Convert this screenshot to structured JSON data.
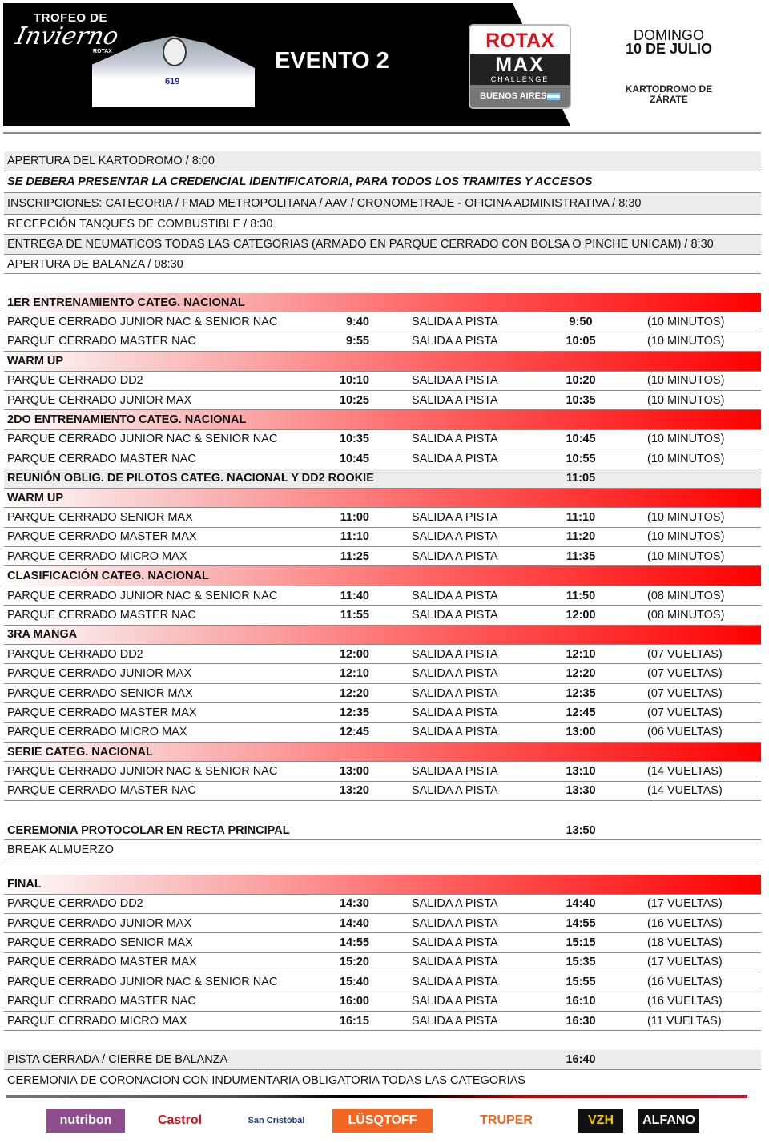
{
  "header": {
    "trofeo_line1": "TROFEO DE",
    "trofeo_line2": "Invierno",
    "trofeo_line3": "ROTAX",
    "kart_number": "619",
    "event": "EVENTO 2",
    "rotax_logo": {
      "brand": "ROTAX",
      "max": "MAX",
      "challenge": "CHALLENGE",
      "region": "BUENOS AIRES"
    },
    "date_line1": "DOMINGO",
    "date_line2": "10 DE JULIO",
    "venue": "KARTODROMO DE ZÁRATE"
  },
  "colors": {
    "accent_red": "#ff0000",
    "row_gray": "#ececec"
  },
  "rows": [
    {
      "type": "gray",
      "h": 25,
      "name": "APERTURA DEL KARTODROMO / 8:00"
    },
    {
      "type": "bi",
      "h": 27,
      "name": "SE DEBERA PRESENTAR LA CREDENCIAL IDENTIFICATORIA, PARA TODOS LOS TRAMITES Y ACCESOS"
    },
    {
      "type": "gray",
      "h": 27,
      "name": "INSCRIPCIONES: CATEGORIA / FMAD METROPOLITANA / AAV / CRONOMETRAJE - OFICINA ADMINISTRATIVA  / 8:30"
    },
    {
      "type": "plain",
      "h": 25,
      "name": "RECEPCIÓN TANQUES DE COMBUSTIBLE  / 8:30"
    },
    {
      "type": "gray",
      "h": 25,
      "name": "ENTREGA DE NEUMATICOS TODAS LAS CATEGORIAS (ARMADO EN PARQUE CERRADO CON BOLSA O PINCHE UNICAM) / 8:30"
    },
    {
      "type": "plain",
      "h": 24,
      "name": "APERTURA DE BALANZA / 08:30"
    },
    {
      "type": "gap",
      "h": 24
    },
    {
      "type": "head",
      "h": 24.4,
      "name": "1ER ENTRENAMIENTO CATEG. NACIONAL"
    },
    {
      "type": "plain",
      "h": 24.4,
      "name": "PARQUE CERRADO JUNIOR NAC & SENIOR NAC",
      "t1": "9:40",
      "sal": "SALIDA A PISTA",
      "t2": "9:50",
      "note": "(10 MINUTOS)"
    },
    {
      "type": "plain",
      "h": 24.4,
      "name": "PARQUE CERRADO MASTER NAC",
      "t1": "9:55",
      "sal": "SALIDA A PISTA",
      "t2": "10:05",
      "note": "(10 MINUTOS)"
    },
    {
      "type": "head",
      "h": 24.4,
      "name": "WARM UP"
    },
    {
      "type": "plain",
      "h": 24.4,
      "name": "PARQUE CERRADO DD2",
      "t1": "10:10",
      "sal": "SALIDA A PISTA",
      "t2": "10:20",
      "note": "(10 MINUTOS)"
    },
    {
      "type": "plain",
      "h": 24.4,
      "name": "PARQUE CERRADO JUNIOR MAX",
      "t1": "10:25",
      "sal": "SALIDA A PISTA",
      "t2": "10:35",
      "note": "(10 MINUTOS)"
    },
    {
      "type": "head",
      "h": 24.4,
      "name": "2DO ENTRENAMIENTO CATEG. NACIONAL"
    },
    {
      "type": "plain",
      "h": 24.4,
      "name": "PARQUE CERRADO JUNIOR NAC & SENIOR NAC",
      "t1": "10:35",
      "sal": "SALIDA A PISTA",
      "t2": "10:45",
      "note": "(10 MINUTOS)"
    },
    {
      "type": "plain",
      "h": 24.4,
      "name": "PARQUE CERRADO MASTER NAC",
      "t1": "10:45",
      "sal": "SALIDA A PISTA",
      "t2": "10:55",
      "note": "(10 MINUTOS)"
    },
    {
      "type": "grayb",
      "h": 24.4,
      "name": "REUNIÓN OBLIG. DE PILOTOS CATEG. NACIONAL  Y DD2 ROOKIE",
      "t2": "11:05"
    },
    {
      "type": "head",
      "h": 24.4,
      "name": "WARM UP"
    },
    {
      "type": "plain",
      "h": 24.4,
      "name": "PARQUE CERRADO SENIOR MAX",
      "t1": "11:00",
      "sal": "SALIDA A PISTA",
      "t2": "11:10",
      "note": "(10 MINUTOS)"
    },
    {
      "type": "plain",
      "h": 24.4,
      "name": "PARQUE CERRADO MASTER MAX",
      "t1": "11:10",
      "sal": "SALIDA A PISTA",
      "t2": "11:20",
      "note": "(10 MINUTOS)"
    },
    {
      "type": "plain",
      "h": 24.4,
      "name": "PARQUE CERRADO MICRO MAX",
      "t1": "11:25",
      "sal": "SALIDA A PISTA",
      "t2": "11:35",
      "note": "(10 MINUTOS)"
    },
    {
      "type": "head",
      "h": 24.4,
      "name": "CLASIFICACIÓN CATEG. NACIONAL"
    },
    {
      "type": "plain",
      "h": 24.4,
      "name": "PARQUE CERRADO JUNIOR NAC & SENIOR NAC",
      "t1": "11:40",
      "sal": "SALIDA A PISTA",
      "t2": "11:50",
      "note": "(08 MINUTOS)"
    },
    {
      "type": "plain",
      "h": 24.4,
      "name": "PARQUE CERRADO MASTER NAC",
      "t1": "11:55",
      "sal": "SALIDA A PISTA",
      "t2": "12:00",
      "note": "(08 MINUTOS)"
    },
    {
      "type": "head",
      "h": 24.4,
      "name": "3RA MANGA"
    },
    {
      "type": "plain",
      "h": 24.4,
      "name": "PARQUE CERRADO DD2",
      "t1": "12:00",
      "sal": "SALIDA A PISTA",
      "t2": "12:10",
      "note": "(07 VUELTAS)"
    },
    {
      "type": "plain",
      "h": 24.4,
      "name": "PARQUE CERRADO JUNIOR MAX",
      "t1": "12:10",
      "sal": "SALIDA A PISTA",
      "t2": "12:20",
      "note": "(07 VUELTAS)"
    },
    {
      "type": "plain",
      "h": 24.4,
      "name": "PARQUE CERRADO SENIOR MAX",
      "t1": "12:20",
      "sal": "SALIDA A PISTA",
      "t2": "12:35",
      "note": "(07 VUELTAS)"
    },
    {
      "type": "plain",
      "h": 24.4,
      "name": "PARQUE CERRADO MASTER MAX",
      "t1": "12:35",
      "sal": "SALIDA A PISTA",
      "t2": "12:45",
      "note": "(07 VUELTAS)"
    },
    {
      "type": "plain",
      "h": 24.4,
      "name": "PARQUE CERRADO MICRO MAX",
      "t1": "12:45",
      "sal": "SALIDA A PISTA",
      "t2": "13:00",
      "note": "(06 VUELTAS)"
    },
    {
      "type": "head",
      "h": 24.4,
      "name": "SERIE CATEG. NACIONAL"
    },
    {
      "type": "plain",
      "h": 24.4,
      "name": "PARQUE CERRADO JUNIOR NAC & SENIOR NAC",
      "t1": "13:00",
      "sal": "SALIDA A PISTA",
      "t2": "13:10",
      "note": "(14 VUELTAS)"
    },
    {
      "type": "plain",
      "h": 24.4,
      "name": "PARQUE CERRADO MASTER NAC",
      "t1": "13:20",
      "sal": "SALIDA A PISTA",
      "t2": "13:30",
      "note": "(14 VUELTAS)"
    },
    {
      "type": "gap",
      "h": 25
    },
    {
      "type": "plainb",
      "h": 24,
      "name": "CEREMONIA PROTOCOLAR EN RECTA PRINCIPAL",
      "t2": "13:50"
    },
    {
      "type": "gapline",
      "h": 24,
      "name": "BREAK ALMUERZO"
    },
    {
      "type": "gap",
      "h": 19
    },
    {
      "type": "head",
      "h": 24.4,
      "name": "FINAL"
    },
    {
      "type": "plain",
      "h": 24.4,
      "name": "PARQUE CERRADO DD2",
      "t1": "14:30",
      "sal": "SALIDA A PISTA",
      "t2": "14:40",
      "note": "(17 VUELTAS)"
    },
    {
      "type": "plain",
      "h": 24.4,
      "name": "PARQUE CERRADO JUNIOR MAX",
      "t1": "14:40",
      "sal": "SALIDA A PISTA",
      "t2": "14:55",
      "note": "(16 VUELTAS)"
    },
    {
      "type": "plain",
      "h": 24.4,
      "name": "PARQUE CERRADO SENIOR MAX",
      "t1": "14:55",
      "sal": "SALIDA A PISTA",
      "t2": "15:15",
      "note": "(18 VUELTAS)"
    },
    {
      "type": "plain",
      "h": 24.4,
      "name": "PARQUE CERRADO MASTER MAX",
      "t1": "15:20",
      "sal": "SALIDA A PISTA",
      "t2": "15:35",
      "note": "(17 VUELTAS)"
    },
    {
      "type": "plain",
      "h": 24.4,
      "name": "PARQUE CERRADO JUNIOR NAC & SENIOR NAC",
      "t1": "15:40",
      "sal": "SALIDA A PISTA",
      "t2": "15:55",
      "note": "(16 VUELTAS)"
    },
    {
      "type": "plain",
      "h": 24.4,
      "name": "PARQUE CERRADO MASTER NAC",
      "t1": "16:00",
      "sal": "SALIDA A PISTA",
      "t2": "16:10",
      "note": "(16 VUELTAS)"
    },
    {
      "type": "plain",
      "h": 24.4,
      "name": "PARQUE CERRADO MICRO MAX",
      "t1": "16:15",
      "sal": "SALIDA A PISTA",
      "t2": "16:30",
      "note": "(11 VUELTAS)"
    },
    {
      "type": "gap",
      "h": 24
    },
    {
      "type": "gray",
      "h": 25,
      "name": "PISTA CERRADA / CIERRE DE BALANZA",
      "t2": "16:40"
    },
    {
      "type": "gap",
      "h": 26,
      "name": "CEREMONIA DE CORONACION CON INDUMENTARIA OBLIGATORIA TODAS LAS CATEGORIAS"
    }
  ],
  "sponsors": [
    {
      "name": "nutribon",
      "bg": "#8e4e8e",
      "fg": "#ffffff"
    },
    {
      "name": "Castrol",
      "bg": "#ffffff",
      "fg": "#d0101a"
    },
    {
      "name": "San Cristóbal",
      "bg": "#ffffff",
      "fg": "#1a3a7a"
    },
    {
      "name": "LÜSQTOFF",
      "bg": "#f26522",
      "fg": "#ffffff"
    },
    {
      "name": "TRUPER",
      "bg": "#ffffff",
      "fg": "#f26522"
    },
    {
      "name": "VZH",
      "bg": "#111111",
      "fg": "#f5c400"
    },
    {
      "name": "ALFANO",
      "bg": "#111111",
      "fg": "#ffffff"
    }
  ]
}
